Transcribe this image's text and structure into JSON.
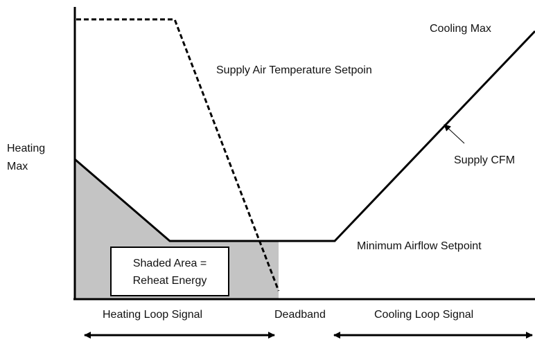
{
  "curves": {
    "cooling_max": "Cooling Max",
    "supply_air_temperature": "Supply Air Temperature Setpoin",
    "heating_max": [
      "Heating",
      "Max"
    ],
    "supply_cfm": "Supply CFM",
    "minimum_airflow": "Minimum Airflow Setpoint"
  },
  "shaded_box": [
    "Shaded Area =",
    "Reheat Energy"
  ],
  "axis_regions": {
    "heating": "Heating Loop Signal",
    "deadband": "Deadband",
    "cooling": "Cooling Loop Signal"
  }
}
